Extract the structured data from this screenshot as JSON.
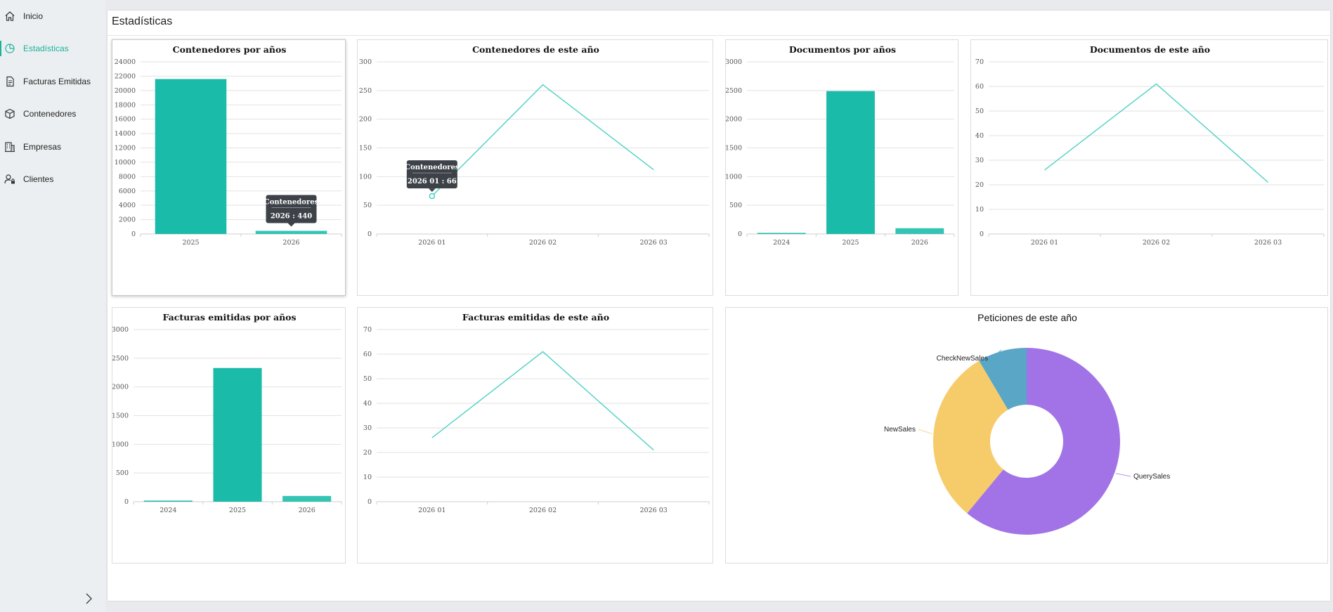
{
  "sidebar": {
    "items": [
      {
        "label": "Inicio",
        "icon": "home-icon",
        "active": false
      },
      {
        "label": "Estadísticas",
        "icon": "pie-chart-icon",
        "active": true
      },
      {
        "label": "Facturas Emitidas",
        "icon": "invoice-icon",
        "active": false
      },
      {
        "label": "Contenedores",
        "icon": "box-icon",
        "active": false
      },
      {
        "label": "Empresas",
        "icon": "building-icon",
        "active": false
      },
      {
        "label": "Clientes",
        "icon": "user-lock-icon",
        "active": false
      }
    ]
  },
  "page": {
    "title": "Estadísticas"
  },
  "colors": {
    "accent": "#1ab39a",
    "bar": "#1abba9",
    "line": "#3fcfc0",
    "tooltip": "#3d4249"
  },
  "chart_data": [
    {
      "id": "contenedores-anios",
      "type": "bar",
      "title": "Contenedores por años",
      "categories": [
        "2025",
        "2026"
      ],
      "values": [
        21600,
        440
      ],
      "yticks": [
        0,
        2000,
        4000,
        6000,
        8000,
        10000,
        12000,
        14000,
        16000,
        18000,
        20000,
        22000,
        24000
      ],
      "ylim": [
        0,
        24000
      ],
      "tooltip": {
        "series": "Contenedores",
        "label": "2026 : 440"
      }
    },
    {
      "id": "contenedores-este-anio",
      "type": "line",
      "title": "Contenedores de este año",
      "categories": [
        "2026 01",
        "2026 02",
        "2026 03"
      ],
      "values": [
        66,
        260,
        112
      ],
      "yticks": [
        0,
        50,
        100,
        150,
        200,
        250,
        300
      ],
      "ylim": [
        0,
        300
      ],
      "tooltip": {
        "series": "Contenedores",
        "label": "2026 01 : 66"
      }
    },
    {
      "id": "documentos-anios",
      "type": "bar",
      "title": "Documentos por años",
      "categories": [
        "2024",
        "2025",
        "2026"
      ],
      "values": [
        5,
        2490,
        100
      ],
      "yticks": [
        0,
        500,
        1000,
        1500,
        2000,
        2500,
        3000
      ],
      "ylim": [
        0,
        3000
      ]
    },
    {
      "id": "documentos-este-anio",
      "type": "line",
      "title": "Documentos de este año",
      "categories": [
        "2026 01",
        "2026 02",
        "2026 03"
      ],
      "values": [
        26,
        61,
        21
      ],
      "yticks": [
        0,
        10,
        20,
        30,
        40,
        50,
        60,
        70
      ],
      "ylim": [
        0,
        70
      ]
    },
    {
      "id": "facturas-anios",
      "type": "bar",
      "title": "Facturas emitidas por años",
      "categories": [
        "2024",
        "2025",
        "2026"
      ],
      "values": [
        5,
        2330,
        100
      ],
      "yticks": [
        0,
        500,
        1000,
        1500,
        2000,
        2500,
        3000
      ],
      "ylim": [
        0,
        3000
      ]
    },
    {
      "id": "facturas-este-anio",
      "type": "line",
      "title": "Facturas emitidas de este año",
      "categories": [
        "2026 01",
        "2026 02",
        "2026 03"
      ],
      "values": [
        26,
        61,
        21
      ],
      "yticks": [
        0,
        10,
        20,
        30,
        40,
        50,
        60,
        70
      ],
      "ylim": [
        0,
        70
      ]
    },
    {
      "id": "peticiones-este-anio",
      "type": "pie",
      "title": "Peticiones de este año",
      "slices": [
        {
          "label": "QuerySales",
          "value": 61,
          "color": "#a173e6"
        },
        {
          "label": "NewSales",
          "value": 30.5,
          "color": "#f6cc6a"
        },
        {
          "label": "CheckNewSales",
          "value": 8.5,
          "color": "#59a6c7"
        }
      ]
    }
  ]
}
